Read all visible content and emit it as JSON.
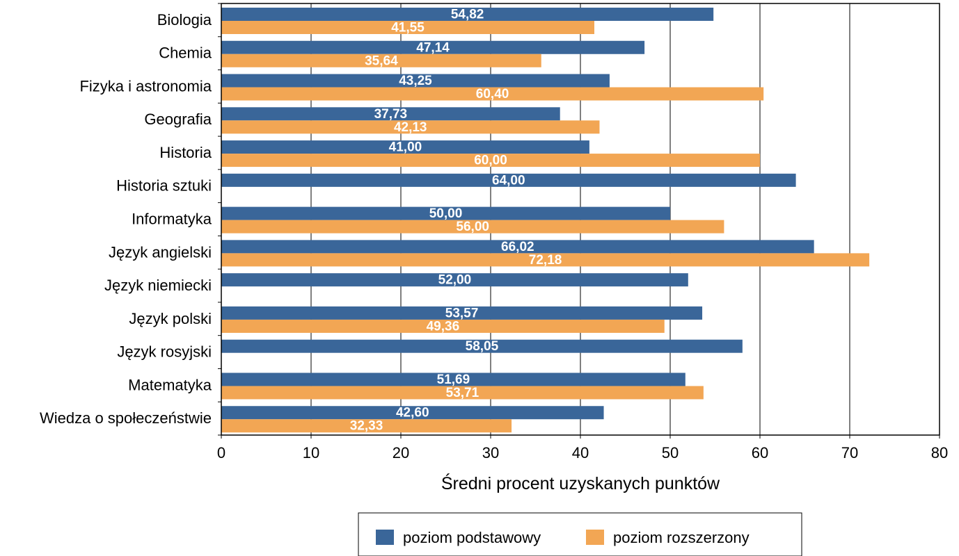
{
  "chart_data": {
    "type": "bar",
    "orientation": "horizontal",
    "categories": [
      "Biologia",
      "Chemia",
      "Fizyka i astronomia",
      "Geografia",
      "Historia",
      "Historia sztuki",
      "Informatyka",
      "Język angielski",
      "Język niemiecki",
      "Język polski",
      "Język rosyjski",
      "Matematyka",
      "Wiedza o społeczeństwie"
    ],
    "series": [
      {
        "name": "poziom podstawowy",
        "color": "#3A6699",
        "values": [
          54.82,
          47.14,
          43.25,
          37.73,
          41.0,
          64.0,
          50.0,
          66.02,
          52.0,
          53.57,
          58.05,
          51.69,
          42.6
        ],
        "labels": [
          "54,82",
          "47,14",
          "43,25",
          "37,73",
          "41,00",
          "64,00",
          "50,00",
          "66,02",
          "52,00",
          "53,57",
          "58,05",
          "51,69",
          "42,60"
        ]
      },
      {
        "name": "poziom rozszerzony",
        "color": "#F2A654",
        "values": [
          41.55,
          35.64,
          60.4,
          42.13,
          60.0,
          null,
          56.0,
          72.18,
          null,
          49.36,
          null,
          53.71,
          32.33
        ],
        "labels": [
          "41,55",
          "35,64",
          "60,40",
          "42,13",
          "60,00",
          "",
          "56,00",
          "72,18",
          "",
          "49,36",
          "",
          "53,71",
          "32,33"
        ]
      }
    ],
    "xlabel": "Średni procent uzyskanych punktów",
    "ylabel": "",
    "title": "",
    "xlim": [
      0,
      80
    ],
    "xticks": [
      0,
      10,
      20,
      30,
      40,
      50,
      60,
      70,
      80
    ],
    "grid": "vertical",
    "legend_position": "bottom"
  }
}
